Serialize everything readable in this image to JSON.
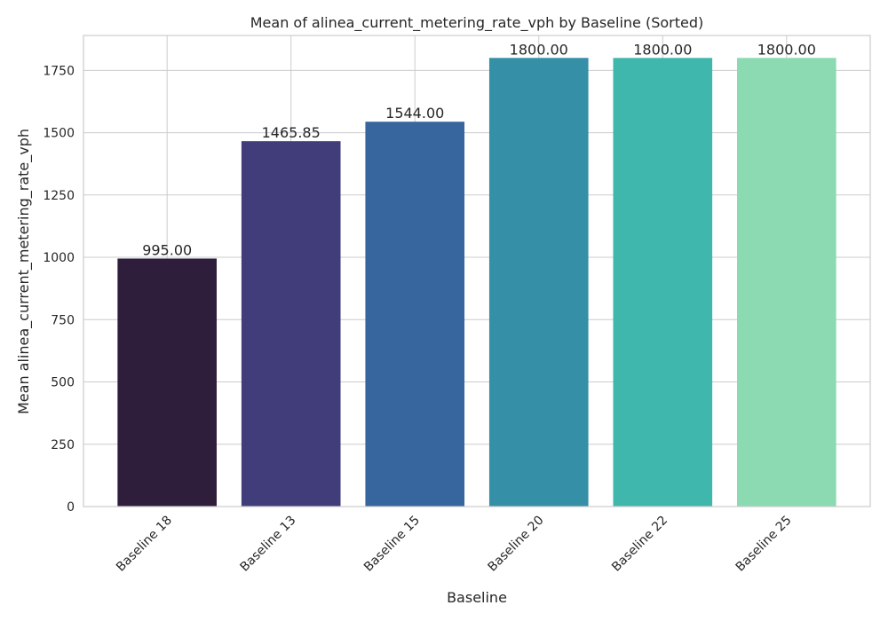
{
  "chart_data": {
    "type": "bar",
    "title": "Mean of alinea_current_metering_rate_vph by Baseline (Sorted)",
    "xlabel": "Baseline",
    "ylabel": "Mean alinea_current_metering_rate_vph",
    "categories": [
      "Baseline 18",
      "Baseline 13",
      "Baseline 15",
      "Baseline 20",
      "Baseline 22",
      "Baseline 25"
    ],
    "values": [
      995.0,
      1465.85,
      1544.0,
      1800.0,
      1800.0,
      1800.0
    ],
    "data_labels": [
      "995.00",
      "1465.85",
      "1544.00",
      "1800.00",
      "1800.00",
      "1800.00"
    ],
    "colors": [
      "#2e1e3b",
      "#413d7b",
      "#37659e",
      "#348fa7",
      "#40b7ad",
      "#8bdab2"
    ],
    "ylim": [
      0,
      1890
    ],
    "yticks": [
      0,
      250,
      500,
      750,
      1000,
      1250,
      1500,
      1750
    ],
    "grid": true,
    "legend": "none"
  }
}
